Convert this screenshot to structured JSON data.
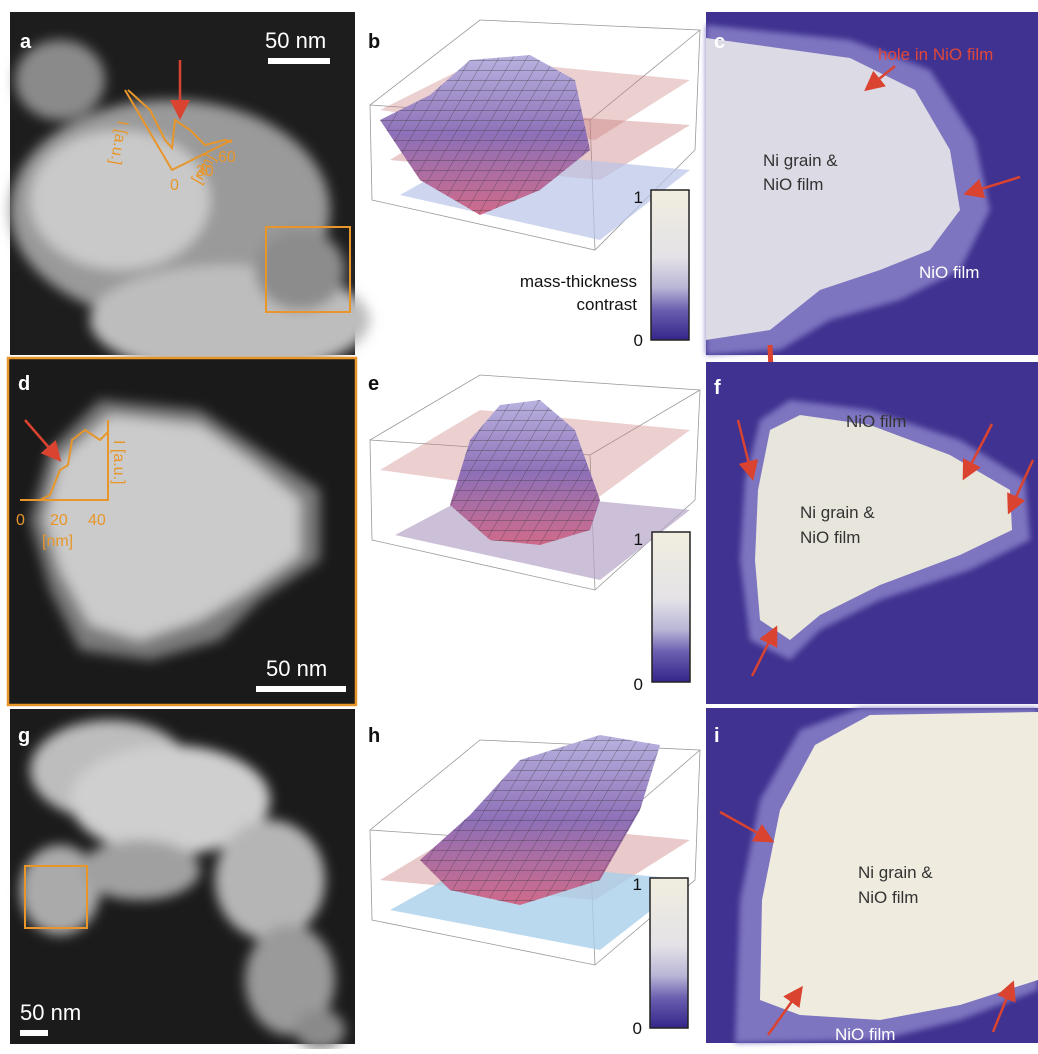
{
  "panels": [
    {
      "label": "a",
      "scale_bar": "50 nm",
      "profile": {
        "y_label": "I [a.u.]",
        "x_ticks": [
          "0",
          "30",
          "60"
        ],
        "x_label": "[nm]"
      }
    },
    {
      "label": "b",
      "colorbar": {
        "max": "1",
        "min": "0",
        "title": [
          "mass-thickness",
          "contrast"
        ]
      }
    },
    {
      "label": "c",
      "annotations": [
        "hole in NiO film",
        "Ni grain &",
        "NiO film",
        "NiO film"
      ]
    },
    {
      "label": "d",
      "scale_bar": "50 nm",
      "profile": {
        "y_label": "I [a.u.]",
        "x_ticks": [
          "0",
          "20",
          "40"
        ],
        "x_label": "[nm]"
      }
    },
    {
      "label": "e",
      "colorbar": {
        "max": "1",
        "min": "0"
      }
    },
    {
      "label": "f",
      "annotations": [
        "NiO film",
        "Ni grain &",
        "NiO film"
      ]
    },
    {
      "label": "g",
      "scale_bar": "50 nm"
    },
    {
      "label": "h",
      "colorbar": {
        "max": "1",
        "min": "0"
      }
    },
    {
      "label": "i",
      "annotations": [
        "Ni grain &",
        "NiO film",
        "NiO film"
      ]
    }
  ]
}
